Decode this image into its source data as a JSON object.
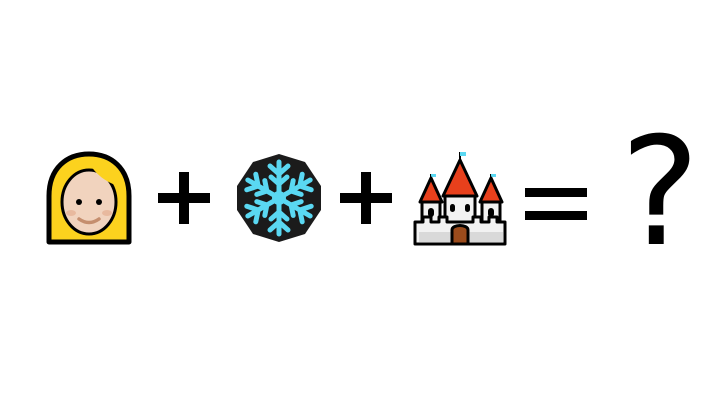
{
  "puzzle": {
    "tokens": [
      {
        "kind": "emoji",
        "icon": "woman-blond-hair-icon"
      },
      {
        "kind": "operator",
        "symbol": "+"
      },
      {
        "kind": "emoji",
        "icon": "snowflake-icon"
      },
      {
        "kind": "operator",
        "symbol": "+"
      },
      {
        "kind": "emoji",
        "icon": "castle-icon"
      },
      {
        "kind": "operator",
        "symbol": "="
      },
      {
        "kind": "answer",
        "text": "?"
      }
    ],
    "answer_text": "?"
  },
  "colors": {
    "hair": "#FCD21E",
    "skin": "#F1D3BE",
    "snowflake": "#5AD8F2",
    "snow_bg": "#1B1B1B",
    "roof": "#E8401C",
    "castle_wall": "#F2F2F2",
    "castle_shade": "#CFCFCF",
    "door": "#9B4B1C",
    "ink": "#000000"
  }
}
